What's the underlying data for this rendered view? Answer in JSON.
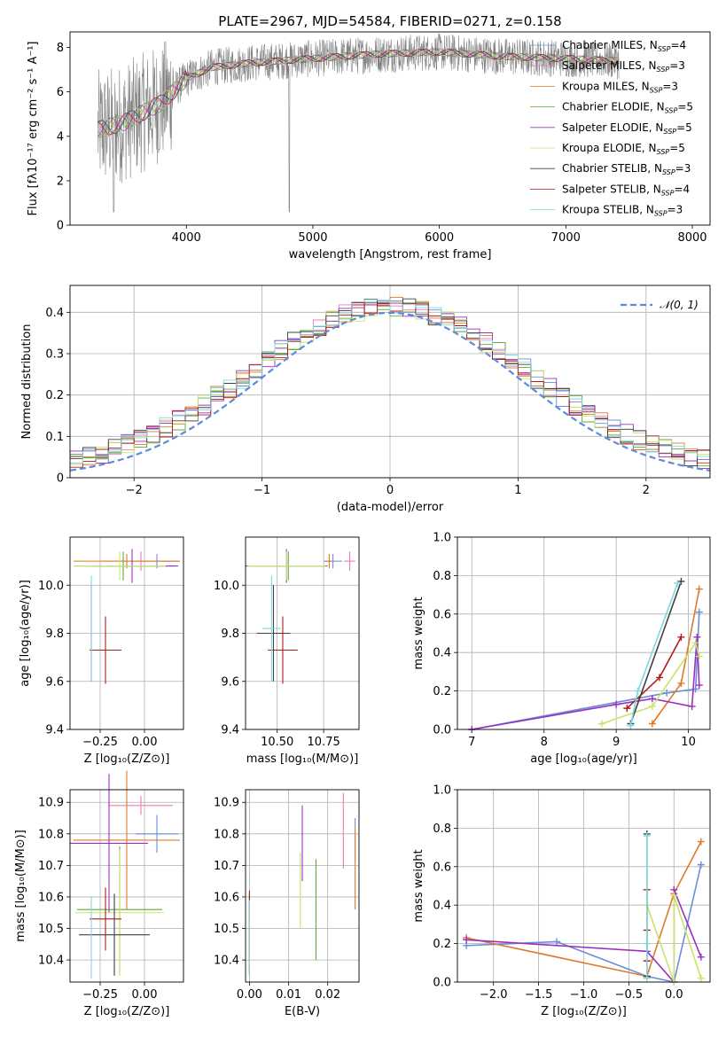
{
  "title": "PLATE=2967, MJD=54584, FIBERID=0271, z=0.158",
  "colors": {
    "spectrum_data": "#808080",
    "normal_curve": "#5b8bd9",
    "Chabrier MILES": "#6a8fd8",
    "Salpeter MILES": "#e87fb6",
    "Kroupa MILES": "#e0782a",
    "Chabrier ELODIE": "#5fa83c",
    "Salpeter ELODIE": "#9b30c0",
    "Kroupa ELODIE": "#c9e36a",
    "Chabrier STELIB": "#404040",
    "Salpeter STELIB": "#b01c1c",
    "Kroupa STELIB": "#7fd8e0"
  },
  "models": [
    {
      "key": "Chabrier MILES",
      "label": "Chabrier MILES, N",
      "sub": "SSP",
      "n": "=4"
    },
    {
      "key": "Salpeter MILES",
      "label": "Salpeter MILES, N",
      "sub": "SSP",
      "n": "=3"
    },
    {
      "key": "Kroupa MILES",
      "label": "Kroupa MILES, N",
      "sub": "SSP",
      "n": "=3"
    },
    {
      "key": "Chabrier ELODIE",
      "label": "Chabrier ELODIE, N",
      "sub": "SSP",
      "n": "=5"
    },
    {
      "key": "Salpeter ELODIE",
      "label": "Salpeter ELODIE, N",
      "sub": "SSP",
      "n": "=5"
    },
    {
      "key": "Kroupa ELODIE",
      "label": "Kroupa ELODIE, N",
      "sub": "SSP",
      "n": "=5"
    },
    {
      "key": "Chabrier STELIB",
      "label": "Chabrier STELIB, N",
      "sub": "SSP",
      "n": "=3"
    },
    {
      "key": "Salpeter STELIB",
      "label": "Salpeter STELIB, N",
      "sub": "SSP",
      "n": "=4"
    },
    {
      "key": "Kroupa STELIB",
      "label": "Kroupa STELIB, N",
      "sub": "SSP",
      "n": "=3"
    }
  ],
  "chart_data": [
    {
      "id": "spectrum",
      "type": "line",
      "xlabel": "wavelength [Angstrom, rest frame]",
      "ylabel": "Flux [fλ10⁻¹⁷ erg cm⁻² s⁻¹ A⁻¹]",
      "xlim": [
        3080,
        8140
      ],
      "ylim": [
        0,
        8.7
      ],
      "xticks": [
        4000,
        5000,
        6000,
        7000,
        8000
      ],
      "yticks": [
        0,
        2,
        4,
        6,
        8
      ],
      "continuum": {
        "x": [
          3300,
          3500,
          3800,
          4000,
          4200,
          4500,
          5000,
          5500,
          6000,
          6500,
          7000,
          7400
        ],
        "y": [
          4.3,
          4.6,
          5.5,
          6.6,
          7.1,
          7.3,
          7.5,
          7.7,
          7.8,
          7.6,
          7.5,
          7.4
        ]
      },
      "legend": "upper right"
    },
    {
      "id": "residuals",
      "type": "histogram",
      "xlabel": "(data-model)/error",
      "ylabel": "Normed distribution",
      "xlim": [
        -2.5,
        2.5
      ],
      "ylim": [
        0,
        0.465
      ],
      "xticks": [
        -2,
        -1,
        0,
        1,
        2
      ],
      "yticks": [
        0.0,
        0.1,
        0.2,
        0.3,
        0.4
      ],
      "bin_width": 0.1,
      "reference_curve": {
        "name": "𝒩(0, 1)",
        "mean": 0,
        "sigma": 1,
        "style": "dashed"
      },
      "legend": "upper right"
    },
    {
      "id": "age_vs_Z",
      "type": "errorbar",
      "xlabel": "Z [log₁₀(Z/Z⊙)]",
      "ylabel": "age  [log₁₀(age/yr)]",
      "xlim": [
        -0.42,
        0.22
      ],
      "ylim": [
        9.4,
        10.2
      ],
      "xticks": [
        -0.25,
        0.0
      ],
      "yticks": [
        9.4,
        9.6,
        9.8,
        10.0
      ],
      "points": [
        {
          "model": "Chabrier MILES",
          "x": 0.07,
          "xerr": 0.12,
          "y": 10.1,
          "yerr": 0.03
        },
        {
          "model": "Salpeter MILES",
          "x": -0.02,
          "xerr": 0.22,
          "y": 10.1,
          "yerr": 0.04
        },
        {
          "model": "Kroupa MILES",
          "x": -0.1,
          "xerr": 0.3,
          "y": 10.1,
          "yerr": 0.03
        },
        {
          "model": "Chabrier ELODIE",
          "x": -0.12,
          "xerr": 0.28,
          "y": 10.08,
          "yerr": 0.06
        },
        {
          "model": "Salpeter ELODIE",
          "x": -0.07,
          "xerr": 0.26,
          "y": 10.08,
          "yerr": 0.07
        },
        {
          "model": "Kroupa ELODIE",
          "x": -0.14,
          "xerr": 0.26,
          "y": 10.08,
          "yerr": 0.06
        },
        {
          "model": "Chabrier STELIB",
          "x": -0.3,
          "xerr": 0.0,
          "y": 9.8,
          "yerr": 0.2
        },
        {
          "model": "Salpeter STELIB",
          "x": -0.22,
          "xerr": 0.09,
          "y": 9.73,
          "yerr": 0.14
        },
        {
          "model": "Kroupa STELIB",
          "x": -0.3,
          "xerr": 0.0,
          "y": 9.82,
          "yerr": 0.22
        }
      ]
    },
    {
      "id": "age_vs_mass",
      "type": "errorbar",
      "xlabel": "mass [log₁₀(M/M⊙)]",
      "ylabel": "",
      "xlim": [
        10.33,
        10.94
      ],
      "ylim": [
        9.4,
        10.2
      ],
      "xticks": [
        10.5,
        10.75
      ],
      "yticks": [
        9.4,
        9.6,
        9.8,
        10.0
      ],
      "points": [
        {
          "model": "Chabrier MILES",
          "x": 10.8,
          "xerr": 0.05,
          "y": 10.1,
          "yerr": 0.03
        },
        {
          "model": "Salpeter MILES",
          "x": 10.89,
          "xerr": 0.03,
          "y": 10.1,
          "yerr": 0.04
        },
        {
          "model": "Kroupa MILES",
          "x": 10.78,
          "xerr": 0.02,
          "y": 10.1,
          "yerr": 0.03
        },
        {
          "model": "Chabrier ELODIE",
          "x": 10.56,
          "xerr": 0.2,
          "y": 10.08,
          "yerr": 0.06
        },
        {
          "model": "Salpeter ELODIE",
          "x": 10.55,
          "xerr": 0.22,
          "y": 10.08,
          "yerr": 0.07
        },
        {
          "model": "Kroupa ELODIE",
          "x": 10.55,
          "xerr": 0.21,
          "y": 10.08,
          "yerr": 0.06
        },
        {
          "model": "Chabrier STELIB",
          "x": 10.48,
          "xerr": 0.09,
          "y": 9.8,
          "yerr": 0.2
        },
        {
          "model": "Salpeter STELIB",
          "x": 10.53,
          "xerr": 0.08,
          "y": 9.73,
          "yerr": 0.14
        },
        {
          "model": "Kroupa STELIB",
          "x": 10.47,
          "xerr": 0.05,
          "y": 9.82,
          "yerr": 0.22
        }
      ]
    },
    {
      "id": "weight_vs_age",
      "type": "line",
      "xlabel": "age  [log₁₀(age/yr)]",
      "ylabel": "mass weight",
      "xlim": [
        6.8,
        10.3
      ],
      "ylim": [
        0,
        1.0
      ],
      "xticks": [
        7,
        8,
        9,
        10
      ],
      "yticks": [
        0.0,
        0.2,
        0.4,
        0.6,
        0.8,
        1.0
      ],
      "series": [
        {
          "model": "Chabrier MILES",
          "x": [
            7.0,
            9.7,
            10.1,
            10.15
          ],
          "y": [
            0.0,
            0.19,
            0.21,
            0.61
          ]
        },
        {
          "model": "Kroupa MILES",
          "x": [
            9.5,
            9.9,
            10.15
          ],
          "y": [
            0.03,
            0.24,
            0.73
          ]
        },
        {
          "model": "Salpeter ELODIE",
          "x": [
            7.0,
            9.0,
            9.5,
            10.05,
            10.12,
            10.15
          ],
          "y": [
            0.0,
            0.13,
            0.16,
            0.12,
            0.48,
            0.23
          ]
        },
        {
          "model": "Kroupa ELODIE",
          "x": [
            8.8,
            9.5,
            10.1,
            10.15
          ],
          "y": [
            0.03,
            0.12,
            0.45,
            0.38
          ]
        },
        {
          "model": "Salpeter STELIB",
          "x": [
            9.15,
            9.6,
            9.9
          ],
          "y": [
            0.11,
            0.27,
            0.48
          ]
        },
        {
          "model": "Chabrier STELIB",
          "x": [
            9.2,
            9.9
          ],
          "y": [
            0.03,
            0.77
          ]
        },
        {
          "model": "Kroupa STELIB",
          "x": [
            9.2,
            9.3,
            9.85
          ],
          "y": [
            0.02,
            0.2,
            0.76
          ]
        }
      ]
    },
    {
      "id": "mass_vs_Z",
      "type": "errorbar",
      "xlabel": "Z [log₁₀(Z/Z⊙)]",
      "ylabel": "mass [log₁₀(M/M⊙)]",
      "xlim": [
        -0.42,
        0.22
      ],
      "ylim": [
        10.33,
        10.94
      ],
      "xticks": [
        -0.25,
        0.0
      ],
      "yticks": [
        10.4,
        10.5,
        10.6,
        10.7,
        10.8,
        10.9
      ],
      "points": [
        {
          "model": "Chabrier MILES",
          "x": 0.07,
          "xerr": 0.12,
          "y": 10.8,
          "yerr": 0.06
        },
        {
          "model": "Salpeter MILES",
          "x": -0.02,
          "xerr": 0.18,
          "y": 10.89,
          "yerr": 0.03
        },
        {
          "model": "Kroupa MILES",
          "x": -0.1,
          "xerr": 0.3,
          "y": 10.78,
          "yerr": 0.22
        },
        {
          "model": "Chabrier ELODIE",
          "x": -0.14,
          "xerr": 0.24,
          "y": 10.56,
          "yerr": 0.2
        },
        {
          "model": "Salpeter ELODIE",
          "x": -0.2,
          "xerr": 0.22,
          "y": 10.77,
          "yerr": 0.22
        },
        {
          "model": "Kroupa ELODIE",
          "x": -0.14,
          "xerr": 0.25,
          "y": 10.55,
          "yerr": 0.2
        },
        {
          "model": "Chabrier STELIB",
          "x": -0.17,
          "xerr": 0.2,
          "y": 10.48,
          "yerr": 0.13
        },
        {
          "model": "Salpeter STELIB",
          "x": -0.22,
          "xerr": 0.09,
          "y": 10.53,
          "yerr": 0.1
        },
        {
          "model": "Kroupa STELIB",
          "x": -0.3,
          "xerr": 0.0,
          "y": 10.47,
          "yerr": 0.13
        }
      ]
    },
    {
      "id": "mass_vs_ebv",
      "type": "errorbar",
      "xlabel": "E(B-V)",
      "ylabel": "",
      "xlim": [
        -0.001,
        0.028
      ],
      "ylim": [
        10.33,
        10.94
      ],
      "xticks": [
        0.0,
        0.01,
        0.02
      ],
      "yticks": [
        10.4,
        10.5,
        10.6,
        10.7,
        10.8,
        10.9
      ],
      "points": [
        {
          "model": "Chabrier MILES",
          "x": 0.027,
          "xerr": 0,
          "y": 10.78,
          "yerr": 0.07
        },
        {
          "model": "Salpeter MILES",
          "x": 0.024,
          "xerr": 0,
          "y": 10.81,
          "yerr": 0.12
        },
        {
          "model": "Kroupa MILES",
          "x": 0.027,
          "xerr": 0,
          "y": 10.69,
          "yerr": 0.13
        },
        {
          "model": "Chabrier ELODIE",
          "x": 0.017,
          "xerr": 0,
          "y": 10.56,
          "yerr": 0.16
        },
        {
          "model": "Salpeter ELODIE",
          "x": 0.0135,
          "xerr": 0,
          "y": 10.77,
          "yerr": 0.12
        },
        {
          "model": "Kroupa ELODIE",
          "x": 0.013,
          "xerr": 0,
          "y": 10.62,
          "yerr": 0.12
        },
        {
          "model": "Chabrier STELIB",
          "x": 0.0,
          "xerr": 0,
          "y": 10.48,
          "yerr": 0.13
        },
        {
          "model": "Salpeter STELIB",
          "x": 0.0,
          "xerr": 0,
          "y": 10.49,
          "yerr": 0.13
        },
        {
          "model": "Kroupa STELIB",
          "x": 0.0,
          "xerr": 0,
          "y": 10.47,
          "yerr": 0.12
        }
      ]
    },
    {
      "id": "weight_vs_Z",
      "type": "line",
      "xlabel": "Z [log₁₀(Z/Z⊙)]",
      "ylabel": "mass weight",
      "xlim": [
        -2.4,
        0.4
      ],
      "ylim": [
        0,
        1.0
      ],
      "xticks": [
        -2.0,
        -1.5,
        -1.0,
        -0.5,
        0.0
      ],
      "yticks": [
        0.0,
        0.2,
        0.4,
        0.6,
        0.8,
        1.0
      ],
      "series": [
        {
          "model": "Chabrier MILES",
          "x": [
            -2.3,
            -1.3,
            -0.3,
            0.0,
            0.3
          ],
          "y": [
            0.19,
            0.21,
            0.03,
            0.0,
            0.61
          ]
        },
        {
          "model": "Kroupa MILES",
          "x": [
            -2.3,
            -0.3,
            0.0,
            0.3
          ],
          "y": [
            0.23,
            0.03,
            0.46,
            0.73
          ]
        },
        {
          "model": "Salpeter ELODIE",
          "x": [
            -2.3,
            -0.3,
            0.0,
            0.0,
            0.3
          ],
          "y": [
            0.22,
            0.16,
            0.0,
            0.48,
            0.13
          ]
        },
        {
          "model": "Kroupa ELODIE",
          "x": [
            -0.3,
            0.0,
            0.0,
            0.3
          ],
          "y": [
            0.4,
            0.0,
            0.45,
            0.02
          ]
        },
        {
          "model": "Salpeter STELIB",
          "x": [
            -0.3,
            -0.3,
            -0.3
          ],
          "y": [
            0.11,
            0.27,
            0.48
          ]
        },
        {
          "model": "Chabrier STELIB",
          "x": [
            -0.3,
            -0.3
          ],
          "y": [
            0.03,
            0.77
          ]
        },
        {
          "model": "Kroupa STELIB",
          "x": [
            -0.3,
            -0.3,
            -0.3
          ],
          "y": [
            0.02,
            0.2,
            0.76
          ]
        }
      ]
    }
  ]
}
